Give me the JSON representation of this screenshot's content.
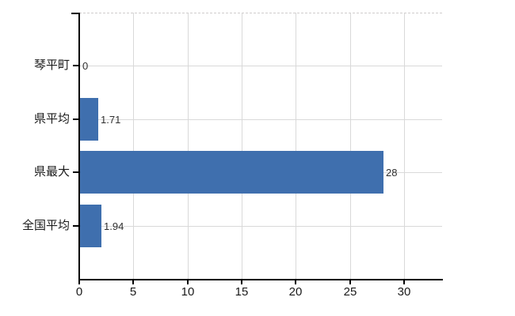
{
  "chart_data": {
    "type": "bar",
    "orientation": "horizontal",
    "title": "",
    "categories": [
      "琴平町",
      "県平均",
      "県最大",
      "全国平均"
    ],
    "values": [
      0,
      1.71,
      28,
      1.94
    ],
    "data_labels": [
      "0",
      "1.71",
      "28",
      "1.94"
    ],
    "x_ticks": [
      "0",
      "5",
      "10",
      "15",
      "20",
      "25",
      "30"
    ],
    "x_tick_values": [
      0,
      5,
      10,
      15,
      20,
      25,
      30
    ],
    "xlim": [
      0,
      33.5
    ],
    "xlabel": "",
    "ylabel": "",
    "grid": true,
    "legend_position": "none",
    "colors": {
      "bar": "#3f6fae",
      "gridline": "#d9d9d9",
      "plot_border": "#cfcccc",
      "axis": "#000000",
      "data_label_text": "#303030",
      "tick_label_text": "#1a1a1a"
    }
  }
}
